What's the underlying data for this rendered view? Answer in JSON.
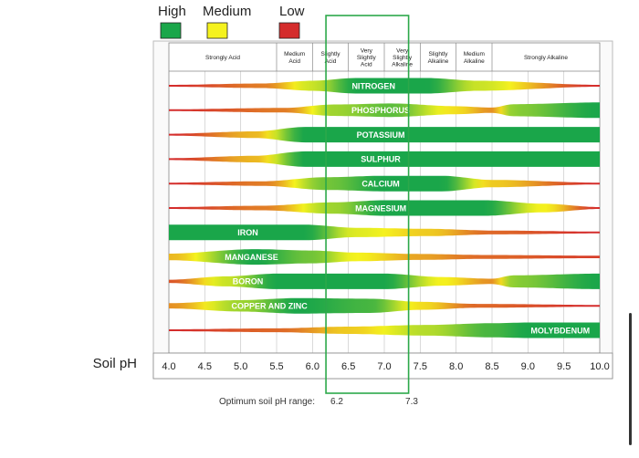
{
  "chart_data": {
    "type": "band",
    "legend": [
      {
        "label": "High",
        "color": "#1aa64a"
      },
      {
        "label": "Medium",
        "color": "#f5f21e"
      },
      {
        "label": "Low",
        "color": "#d42c2c"
      }
    ],
    "zones": [
      {
        "label": [
          "Strongly Acid"
        ],
        "from": 4.0,
        "to": 5.5
      },
      {
        "label": [
          "Medium",
          "Acid"
        ],
        "from": 5.5,
        "to": 6.0
      },
      {
        "label": [
          "Slightly",
          "Acid"
        ],
        "from": 6.0,
        "to": 6.5
      },
      {
        "label": [
          "Very",
          "Slightly",
          "Acid"
        ],
        "from": 6.5,
        "to": 7.0
      },
      {
        "label": [
          "Very",
          "Slightly",
          "Alkaline"
        ],
        "from": 7.0,
        "to": 7.5
      },
      {
        "label": [
          "Slightly",
          "Alkaline"
        ],
        "from": 7.5,
        "to": 8.0
      },
      {
        "label": [
          "Medium",
          "Alkaline"
        ],
        "from": 8.0,
        "to": 8.5
      },
      {
        "label": [
          "Strongly Alkaline"
        ],
        "from": 8.5,
        "to": 10.0
      }
    ],
    "nutrients": [
      {
        "name": "NITROGEN",
        "label_x": 6.85,
        "profile": [
          [
            4.0,
            0
          ],
          [
            5.3,
            0.2
          ],
          [
            6.0,
            0.6
          ],
          [
            6.6,
            1
          ],
          [
            7.6,
            1
          ],
          [
            8.3,
            0.6
          ],
          [
            10.0,
            0
          ]
        ]
      },
      {
        "name": "PHOSPHORUS",
        "label_x": 6.95,
        "profile": [
          [
            4.0,
            0
          ],
          [
            5.6,
            0.2
          ],
          [
            6.3,
            0.7
          ],
          [
            7.1,
            0.85
          ],
          [
            8.0,
            0.45
          ],
          [
            8.5,
            0.25
          ],
          [
            8.8,
            0.75
          ],
          [
            10.0,
            1
          ]
        ]
      },
      {
        "name": "POTASSIUM",
        "label_x": 6.95,
        "profile": [
          [
            4.0,
            0
          ],
          [
            5.2,
            0.35
          ],
          [
            5.9,
            1
          ],
          [
            10.0,
            1
          ]
        ]
      },
      {
        "name": "SULPHUR",
        "label_x": 6.95,
        "profile": [
          [
            4.0,
            0
          ],
          [
            5.2,
            0.35
          ],
          [
            5.9,
            1
          ],
          [
            10.0,
            1
          ]
        ]
      },
      {
        "name": "CALCIUM",
        "label_x": 6.95,
        "profile": [
          [
            4.0,
            0
          ],
          [
            5.3,
            0.2
          ],
          [
            6.2,
            0.8
          ],
          [
            7.0,
            1
          ],
          [
            7.8,
            1
          ],
          [
            8.5,
            0.4
          ],
          [
            10.0,
            0
          ]
        ]
      },
      {
        "name": "MAGNESIUM",
        "label_x": 6.95,
        "profile": [
          [
            4.0,
            0
          ],
          [
            5.3,
            0.2
          ],
          [
            6.3,
            0.7
          ],
          [
            7.0,
            1
          ],
          [
            8.4,
            1
          ],
          [
            9.2,
            0.5
          ],
          [
            10.0,
            0
          ]
        ]
      },
      {
        "name": "IRON",
        "label_x": 5.1,
        "profile": [
          [
            4.0,
            1
          ],
          [
            5.9,
            1
          ],
          [
            6.6,
            0.55
          ],
          [
            7.6,
            0.4
          ],
          [
            8.5,
            0.15
          ],
          [
            10.0,
            0
          ]
        ]
      },
      {
        "name": "MANGANESE",
        "label_x": 5.15,
        "profile": [
          [
            4.0,
            0.35
          ],
          [
            5.2,
            1
          ],
          [
            6.0,
            0.8
          ],
          [
            6.6,
            0.5
          ],
          [
            7.5,
            0.3
          ],
          [
            8.4,
            0.15
          ],
          [
            10.0,
            0.05
          ]
        ]
      },
      {
        "name": "BORON",
        "label_x": 5.1,
        "profile": [
          [
            4.0,
            0.1
          ],
          [
            4.8,
            0.6
          ],
          [
            5.5,
            1
          ],
          [
            7.0,
            1
          ],
          [
            7.8,
            0.5
          ],
          [
            8.5,
            0.25
          ],
          [
            8.8,
            0.75
          ],
          [
            10.0,
            1
          ]
        ]
      },
      {
        "name": "COPPER AND ZINC",
        "label_x": 5.4,
        "profile": [
          [
            4.0,
            0.25
          ],
          [
            5.0,
            0.7
          ],
          [
            5.8,
            1
          ],
          [
            6.8,
            0.9
          ],
          [
            7.5,
            0.45
          ],
          [
            8.3,
            0.15
          ],
          [
            10.0,
            0
          ]
        ]
      },
      {
        "name": "MOLYBDENUM",
        "label_x": 9.45,
        "profile": [
          [
            4.0,
            0
          ],
          [
            5.5,
            0.15
          ],
          [
            6.5,
            0.4
          ],
          [
            7.6,
            0.65
          ],
          [
            8.5,
            0.9
          ],
          [
            9.0,
            1
          ],
          [
            10.0,
            1
          ]
        ]
      }
    ],
    "x_ticks": [
      "4.0",
      "4.5",
      "5.0",
      "5.5",
      "6.0",
      "6.5",
      "7.0",
      "7.5",
      "8.0",
      "8.5",
      "9.0",
      "9.5",
      "10.0"
    ],
    "xlim": [
      4.0,
      10.0
    ],
    "xlabel": "Soil pH",
    "optimum": {
      "label": "Optimum soil pH range:",
      "from": 6.2,
      "to": 7.3,
      "from_label": "6.2",
      "to_label": "7.3",
      "color": "#2ca84a"
    }
  }
}
